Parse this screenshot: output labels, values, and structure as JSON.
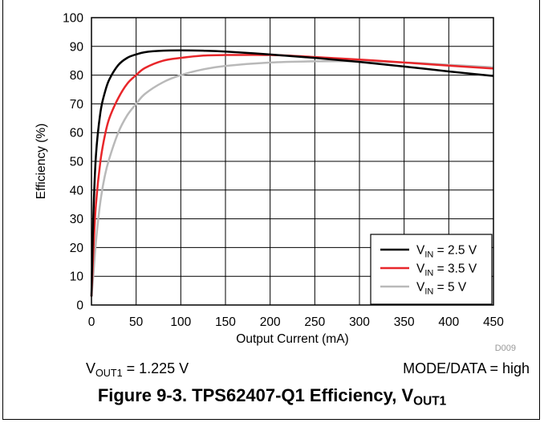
{
  "chart_data": {
    "type": "line",
    "xlabel": "Output Current (mA)",
    "ylabel": "Efficiency (%)",
    "xlim": [
      0,
      450
    ],
    "ylim": [
      0,
      100
    ],
    "xticks": [
      0,
      50,
      100,
      150,
      200,
      250,
      300,
      350,
      400,
      450
    ],
    "yticks": [
      0,
      10,
      20,
      30,
      40,
      50,
      60,
      70,
      80,
      90,
      100
    ],
    "grid": true,
    "legend_position": "bottom-right",
    "figure_id": "D009",
    "series": [
      {
        "name": "V_IN = 2.5 V",
        "legend_main": "V",
        "legend_sub": "IN",
        "legend_rest": " = 2.5 V",
        "color": "#000000",
        "x": [
          0,
          2,
          5,
          10,
          15,
          20,
          30,
          40,
          50,
          60,
          80,
          100,
          125,
          150,
          200,
          250,
          300,
          350,
          400,
          450
        ],
        "y": [
          3,
          30,
          52,
          67,
          74,
          78.5,
          83.5,
          86,
          87.2,
          88,
          88.5,
          88.6,
          88.5,
          88.2,
          87.2,
          86,
          84.6,
          83,
          81.3,
          79.7
        ]
      },
      {
        "name": "V_IN = 3.5 V",
        "legend_main": "V",
        "legend_sub": "IN",
        "legend_rest": " = 3.5 V",
        "color": "#e8262a",
        "x": [
          0,
          2,
          5,
          10,
          15,
          20,
          30,
          40,
          50,
          60,
          80,
          100,
          125,
          150,
          200,
          250,
          300,
          350,
          400,
          450
        ],
        "y": [
          3,
          18,
          35,
          50,
          59,
          65,
          72,
          77,
          80,
          82.5,
          85,
          86,
          86.8,
          87,
          87,
          86.3,
          85.4,
          84.4,
          83.3,
          82.3
        ]
      },
      {
        "name": "V_IN = 5 V",
        "legend_main": "V",
        "legend_sub": "IN",
        "legend_rest": " = 5 V",
        "color": "#b9b9b9",
        "x": [
          0,
          2,
          5,
          10,
          15,
          20,
          30,
          40,
          50,
          60,
          80,
          100,
          125,
          150,
          200,
          250,
          300,
          350,
          400,
          450
        ],
        "y": [
          3,
          10,
          22,
          36,
          45,
          51,
          60,
          66,
          70,
          73.5,
          77.5,
          80,
          82,
          83.2,
          84.4,
          84.8,
          84.8,
          84.4,
          83.6,
          82.7
        ]
      }
    ]
  },
  "conditions": {
    "left_main": "V",
    "left_sub": "OUT1",
    "left_rest": " = 1.225 V",
    "right": "MODE/DATA = high"
  },
  "caption": {
    "main": "Figure 9-3. TPS62407-Q1 Efficiency, V",
    "sub": "OUT1"
  }
}
